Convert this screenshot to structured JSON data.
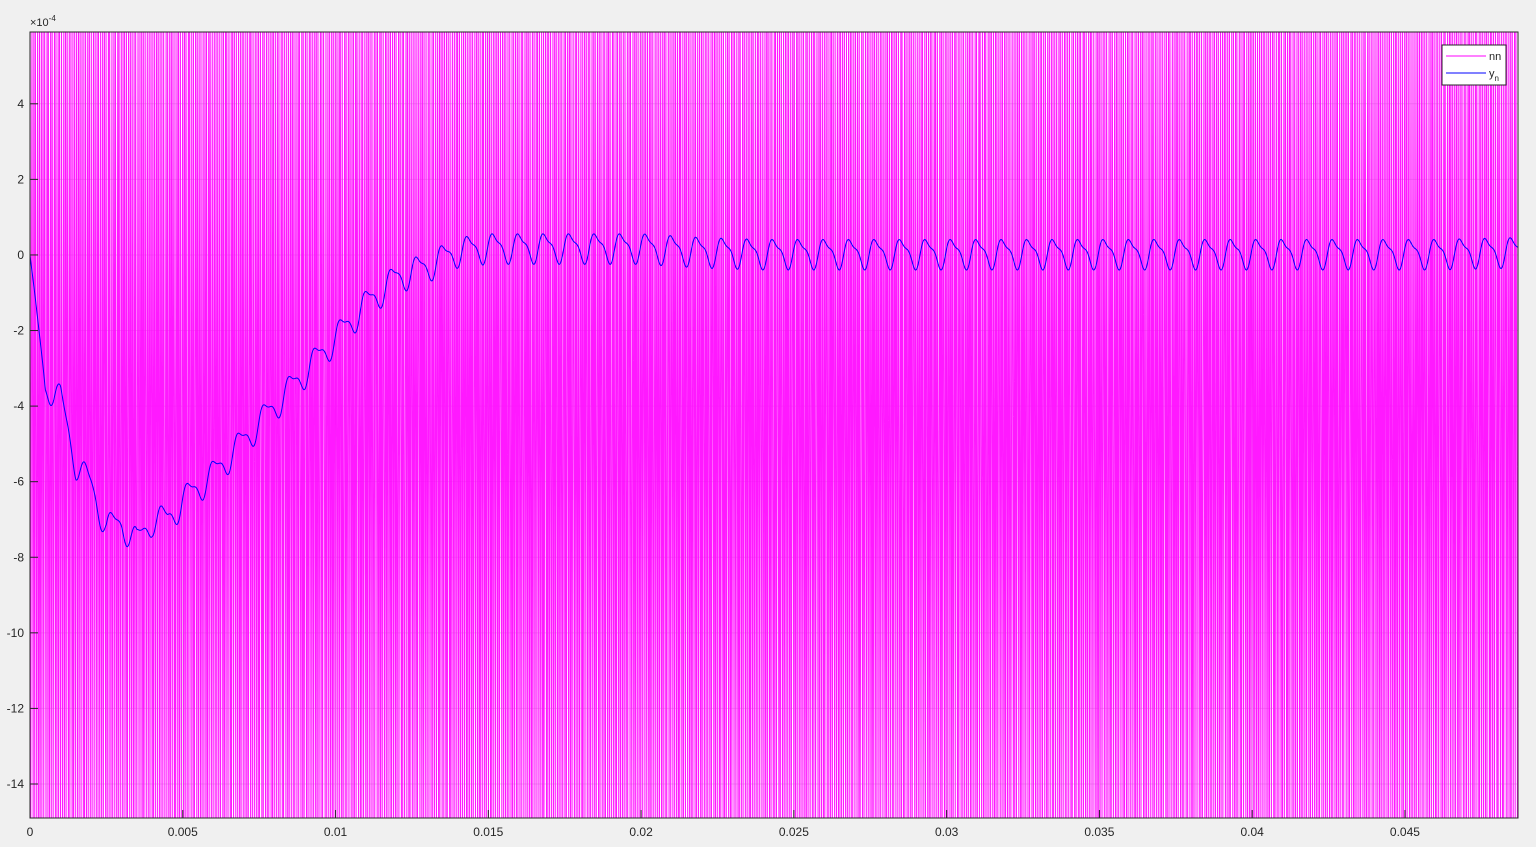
{
  "chart_data": {
    "type": "line",
    "title": "",
    "xlabel": "",
    "ylabel": "",
    "xlim": [
      0,
      0.0487
    ],
    "ylim": [
      -14.9,
      5.9
    ],
    "y_exponent_label": "×10",
    "y_exponent_power": "-4",
    "x_ticks": [
      0,
      0.005,
      0.01,
      0.015,
      0.02,
      0.025,
      0.03,
      0.035,
      0.04,
      0.045
    ],
    "x_tick_labels": [
      "0",
      "0.005",
      "0.01",
      "0.015",
      "0.02",
      "0.025",
      "0.03",
      "0.035",
      "0.04",
      "0.045"
    ],
    "y_ticks": [
      4,
      2,
      0,
      -2,
      -4,
      -6,
      -8,
      -10,
      -12,
      -14
    ],
    "y_tick_labels": [
      "4",
      "2",
      "0",
      "-2",
      "-4",
      "-6",
      "-8",
      "-10",
      "-12",
      "-14"
    ],
    "grid": true,
    "legend_position": "top-right",
    "series": [
      {
        "name": "nn",
        "color": "#ff00ff",
        "kind": "noise-spikes",
        "description_values": "dense high-amplitude noise filling entire y range across full x range",
        "y_range": [
          -14.9,
          5.9
        ]
      },
      {
        "name": "y",
        "name_subscript": "n",
        "color": "#0000ff",
        "kind": "line",
        "x": [
          0,
          0.0005,
          0.001,
          0.0015,
          0.002,
          0.0025,
          0.003,
          0.0035,
          0.004,
          0.0045,
          0.005,
          0.006,
          0.007,
          0.008,
          0.009,
          0.01,
          0.011,
          0.012,
          0.013,
          0.014,
          0.015,
          0.016,
          0.017,
          0.018,
          0.019,
          0.02,
          0.022,
          0.024,
          0.026,
          0.028,
          0.03,
          0.032,
          0.034,
          0.036,
          0.038,
          0.04,
          0.042,
          0.044,
          0.046,
          0.0487
        ],
        "y": [
          0,
          -3.5,
          -3.8,
          -5.5,
          -6.1,
          -7.2,
          -7.1,
          -7.6,
          -7.0,
          -7.0,
          -6.5,
          -5.8,
          -4.9,
          -4.0,
          -3.1,
          -2.2,
          -1.3,
          -0.6,
          -0.3,
          0.1,
          0.2,
          0.2,
          0.2,
          0.2,
          0.2,
          0.2,
          0.1,
          0.05,
          0.05,
          0.05,
          0.05,
          0.05,
          0.05,
          0.05,
          0.05,
          0.05,
          0.05,
          0.05,
          0.05,
          0.1
        ],
        "ripple_amplitude": 0.35,
        "ripple_period": 0.000833
      }
    ]
  }
}
